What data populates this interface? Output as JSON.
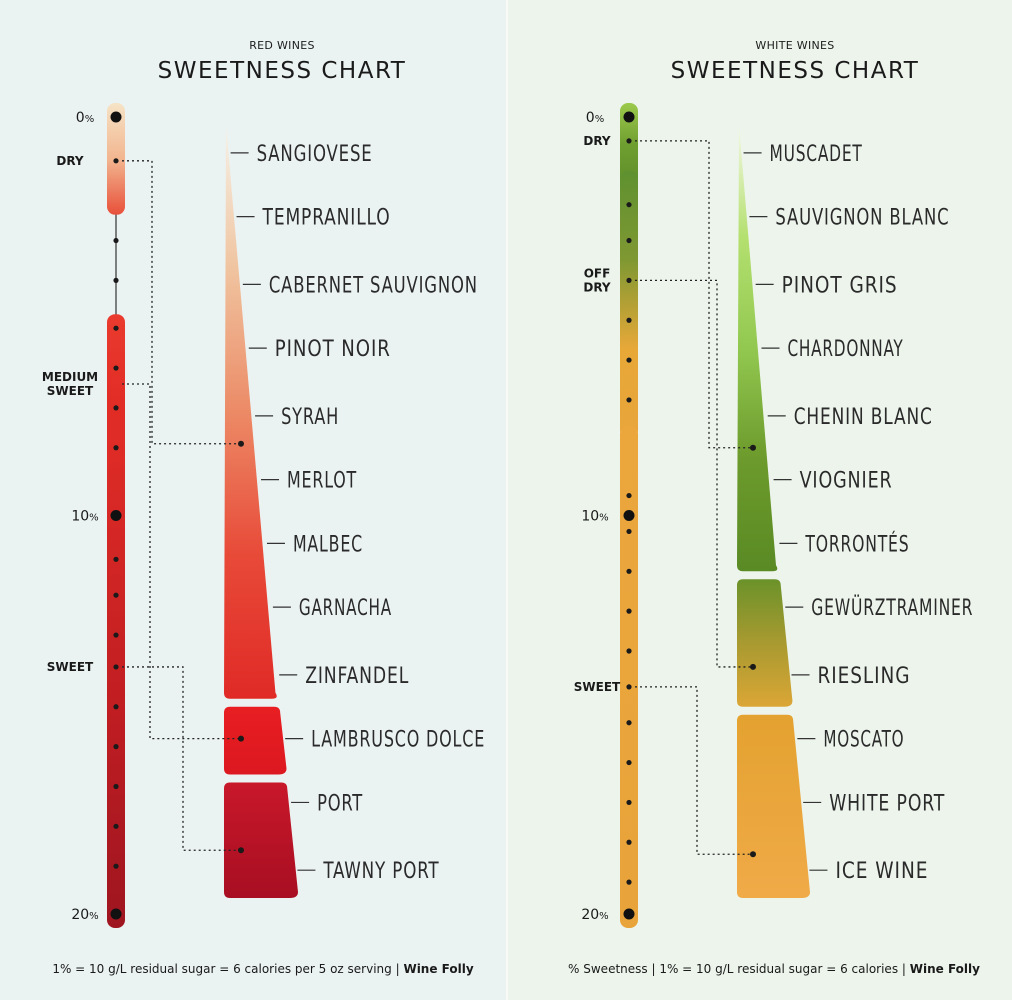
{
  "footer_red": {
    "text": "1% = 10 g/L residual sugar = 6 calories per 5 oz serving | ",
    "brand": "Wine Folly"
  },
  "footer_white": {
    "text": "% Sweetness | 1% = 10 g/L residual sugar = 6 calories | ",
    "brand": "Wine Folly"
  },
  "chart_data": [
    {
      "type": "bar",
      "subtitle": "RED WINES",
      "title": "SWEETNESS CHART",
      "scale_labels": [
        {
          "text": "0%",
          "value": 0
        },
        {
          "text": "10%",
          "value": 10
        },
        {
          "text": "20%",
          "value": 20
        }
      ],
      "levels": [
        {
          "label": "DRY",
          "value": 1.1,
          "range": [
            0,
            2.1
          ],
          "points": [
            1.1
          ],
          "colors": [
            "#f6e3c6",
            "#f2b690",
            "#e8503a"
          ]
        },
        {
          "label": "MEDIUM SWEET",
          "value": 6.7,
          "range": [
            5.3,
            8.8
          ],
          "points": [
            5.3,
            6.3,
            7.3,
            8.3
          ],
          "colors": [
            "#ea3b2e",
            "#e22d26",
            "#dd2a26"
          ]
        },
        {
          "label": "SWEET",
          "value": 13.8,
          "range": [
            9.0,
            20.0
          ],
          "points": [
            11.1,
            12.0,
            13.0,
            13.8,
            14.8,
            15.8,
            16.8,
            17.8,
            18.8
          ],
          "colors": [
            "#dc2b26",
            "#c21e22",
            "#9e1520"
          ]
        }
      ],
      "connector_dots": [
        2.1,
        3.1,
        4.1
      ],
      "varietals": [
        {
          "name": "SANGIOVESE",
          "sweetness": 0.9
        },
        {
          "name": "TEMPRANILLO",
          "sweetness": 2.5
        },
        {
          "name": "CABERNET SAUVIGNON",
          "sweetness": 4.2
        },
        {
          "name": "PINOT NOIR",
          "sweetness": 5.8
        },
        {
          "name": "SYRAH",
          "sweetness": 7.5
        },
        {
          "name": "MERLOT",
          "sweetness": 9.1
        },
        {
          "name": "MALBEC",
          "sweetness": 10.7
        },
        {
          "name": "GARNACHA",
          "sweetness": 12.3
        },
        {
          "name": "ZINFANDEL",
          "sweetness": 14.0
        },
        {
          "name": "LAMBRUSCO DOLCE",
          "sweetness": 15.6
        },
        {
          "name": "PORT",
          "sweetness": 17.2
        },
        {
          "name": "TAWNY PORT",
          "sweetness": 18.9
        }
      ],
      "groups": [
        {
          "range": [
            0.2,
            14.6
          ],
          "colors": [
            "#f5f2e8",
            "#f0c4a0",
            "#ec8a66",
            "#e84a38",
            "#e02a26"
          ]
        },
        {
          "range": [
            14.8,
            16.5
          ],
          "colors": [
            "#e81e22",
            "#dc1820"
          ]
        },
        {
          "range": [
            16.7,
            19.6
          ],
          "colors": [
            "#c8182a",
            "#a80e22"
          ]
        }
      ],
      "links": [
        {
          "from": 1.1,
          "to": 8.2
        },
        {
          "from": 6.7,
          "to": 15.6
        },
        {
          "from": 13.8,
          "to": 18.4
        }
      ]
    },
    {
      "type": "bar",
      "subtitle": "WHITE WINES",
      "title": "SWEETNESS CHART",
      "scale_labels": [
        {
          "text": "0%",
          "value": 0
        },
        {
          "text": "10%",
          "value": 10
        },
        {
          "text": "20%",
          "value": 20
        }
      ],
      "levels": [
        {
          "label": "DRY",
          "value": 0.6,
          "range": [
            0,
            1.4
          ],
          "points": [
            0.6
          ],
          "colors": [
            "#9cca4c",
            "#6f9e30",
            "#5e8e2a"
          ]
        },
        {
          "label": "OFF DRY",
          "value": 4.1,
          "range": [
            1.7,
            7.7
          ],
          "points": [
            2.2,
            3.1,
            4.1,
            5.1,
            6.1,
            7.1
          ],
          "colors": [
            "#5f9130",
            "#7f9832",
            "#e7a838",
            "#e9a53a"
          ]
        },
        {
          "label": "SWEET",
          "value": 14.3,
          "range": [
            8.1,
            20.0
          ],
          "points": [
            9.5,
            10.4,
            11.4,
            12.4,
            13.4,
            14.3,
            15.2,
            16.2,
            17.2,
            18.2,
            19.2
          ],
          "colors": [
            "#eba63c",
            "#e8a43a"
          ]
        }
      ],
      "connector_dots": [],
      "varietals": [
        {
          "name": "MUSCADET",
          "sweetness": 0.9
        },
        {
          "name": "SAUVIGNON BLANC",
          "sweetness": 2.5
        },
        {
          "name": "PINOT GRIS",
          "sweetness": 4.2
        },
        {
          "name": "CHARDONNAY",
          "sweetness": 5.8
        },
        {
          "name": "CHENIN BLANC",
          "sweetness": 7.5
        },
        {
          "name": "VIOGNIER",
          "sweetness": 9.1
        },
        {
          "name": "TORRONTÉS",
          "sweetness": 10.7
        },
        {
          "name": "GEWÜRZTRAMINER",
          "sweetness": 12.3
        },
        {
          "name": "RIESLING",
          "sweetness": 14.0
        },
        {
          "name": "MOSCATO",
          "sweetness": 15.6
        },
        {
          "name": "WHITE PORT",
          "sweetness": 17.2
        },
        {
          "name": "ICE WINE",
          "sweetness": 18.9
        }
      ],
      "groups": [
        {
          "range": [
            0.2,
            11.4
          ],
          "colors": [
            "#f4f8e4",
            "#b4e070",
            "#92c850",
            "#6c9a2c",
            "#5a8a24"
          ]
        },
        {
          "range": [
            11.6,
            14.8
          ],
          "colors": [
            "#6b922a",
            "#a89a30",
            "#dba636"
          ]
        },
        {
          "range": [
            15.0,
            19.6
          ],
          "colors": [
            "#e4a230",
            "#f0aa48"
          ]
        }
      ],
      "links": [
        {
          "from": 0.6,
          "to": 8.3
        },
        {
          "from": 4.1,
          "to": 13.8
        },
        {
          "from": 14.3,
          "to": 18.5
        }
      ]
    }
  ]
}
